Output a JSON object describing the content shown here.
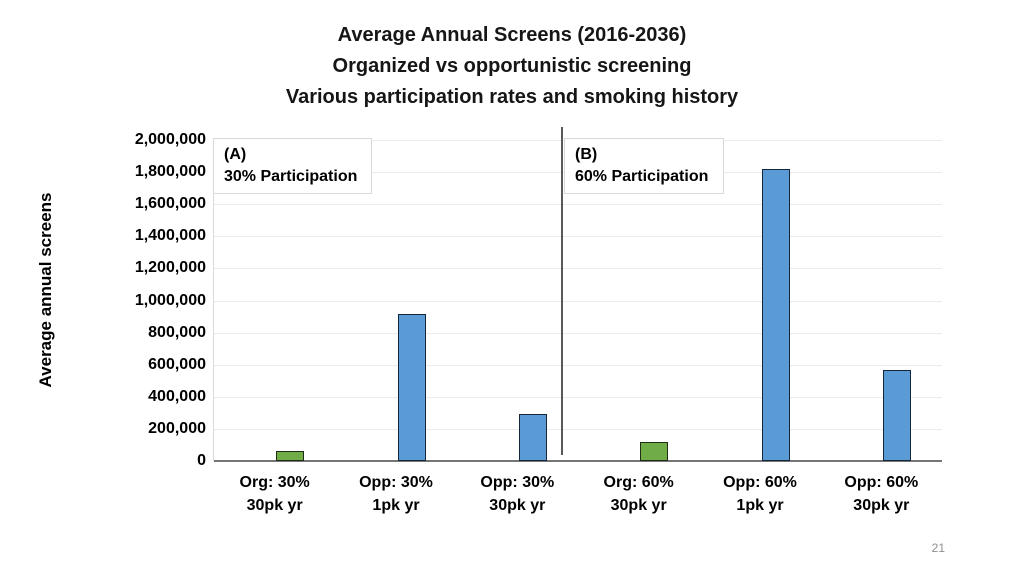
{
  "slide": {
    "page_number": "21"
  },
  "chart_data": {
    "type": "bar",
    "title_lines": [
      "Average Annual Screens (2016-2036)",
      "Organized vs opportunistic screening",
      "Various participation rates and smoking history"
    ],
    "ylabel": "Average annual screens",
    "xlabel": "",
    "ylim": [
      0,
      2000000
    ],
    "ytick_step": 200000,
    "ytick_labels": [
      "2,000,000",
      "1,800,000",
      "1,600,000",
      "1,400,000",
      "1,200,000",
      "1,000,000",
      "800,000",
      "600,000",
      "400,000",
      "200,000",
      "0"
    ],
    "grid": true,
    "legend_position": "none",
    "panels": [
      {
        "label_line1": "(A)",
        "label_line2": "30% Participation"
      },
      {
        "label_line1": "(B)",
        "label_line2": "60% Participation"
      }
    ],
    "categories": [
      "Org: 30% 30pk yr",
      "Opp: 30% 1pk yr",
      "Opp: 30% 30pk yr",
      "Org: 60% 30pk yr",
      "Opp: 60% 1pk yr",
      "Opp: 60% 30pk yr"
    ],
    "bars": [
      {
        "label_line1": "Org: 30%",
        "label_line2": "30pk yr",
        "value": 65000,
        "series": "org",
        "panel": "A"
      },
      {
        "label_line1": "Opp: 30%",
        "label_line2": "1pk yr",
        "value": 915000,
        "series": "opp",
        "panel": "A"
      },
      {
        "label_line1": "Opp: 30%",
        "label_line2": "30pk yr",
        "value": 290000,
        "series": "opp",
        "panel": "A"
      },
      {
        "label_line1": "Org: 60%",
        "label_line2": "30pk yr",
        "value": 120000,
        "series": "org",
        "panel": "B"
      },
      {
        "label_line1": "Opp: 60%",
        "label_line2": "1pk yr",
        "value": 1820000,
        "series": "opp",
        "panel": "B"
      },
      {
        "label_line1": "Opp: 60%",
        "label_line2": "30pk yr",
        "value": 570000,
        "series": "opp",
        "panel": "B"
      }
    ],
    "colors": {
      "title_text": "#161616",
      "axis_text": "#000000",
      "organized_fill": "#70ad47",
      "organized_border": "#1f2d16",
      "opportunistic_fill": "#5b9bd5",
      "opportunistic_border": "#16273a",
      "gridline": "#ececec",
      "axis_line": "#d9d9d9",
      "baseline": "#767676",
      "divider": "#595959",
      "panel_box_bg": "#ffffff",
      "panel_box_border": "#d9d9d9",
      "page_number": "#8f8f8f"
    }
  }
}
